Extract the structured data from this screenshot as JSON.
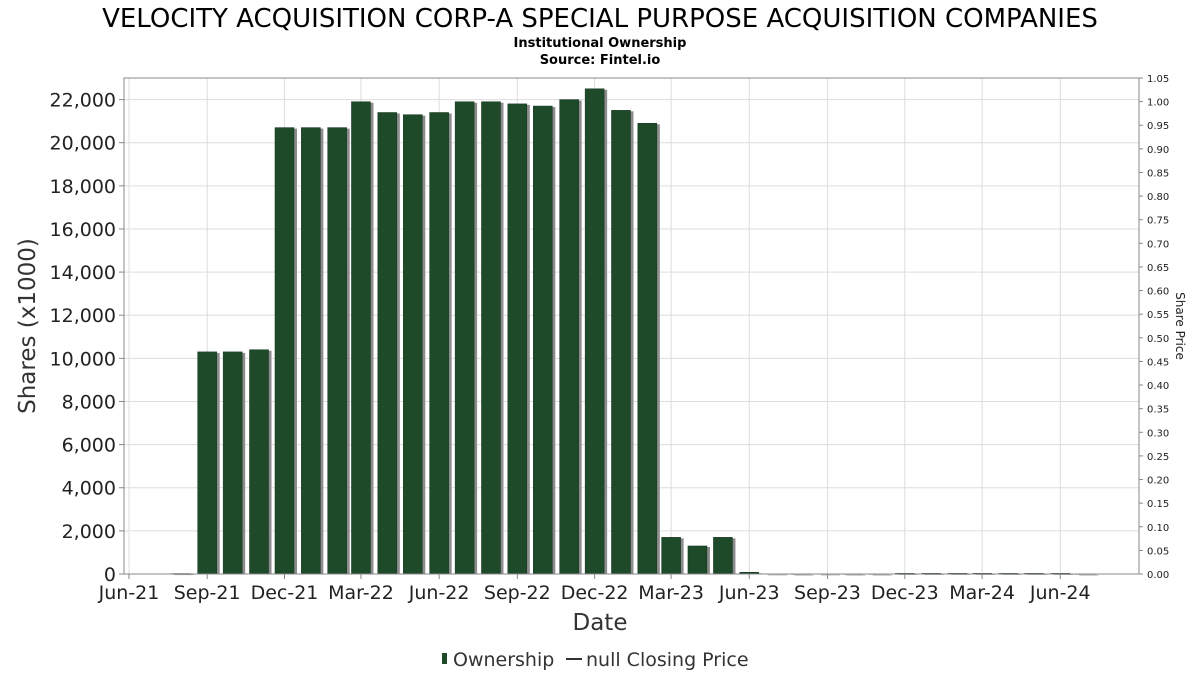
{
  "chart_data": {
    "type": "bar",
    "title": "VELOCITY ACQUISITION CORP-A SPECIAL PURPOSE ACQUISITION COMPANIES",
    "subtitle_lines": [
      "Institutional Ownership",
      "Source: Fintel.io"
    ],
    "xlabel": "Date",
    "ylabel": "Shares (x1000)",
    "y2label": "Share Price",
    "ylim": [
      0,
      23000
    ],
    "y2lim": [
      0,
      1.05
    ],
    "yticks": [
      0,
      2000,
      4000,
      6000,
      8000,
      10000,
      12000,
      14000,
      16000,
      18000,
      20000,
      22000
    ],
    "ytick_labels": [
      "0",
      "2,000",
      "4,000",
      "6,000",
      "8,000",
      "10,000",
      "12,000",
      "14,000",
      "16,000",
      "18,000",
      "20,000",
      "22,000"
    ],
    "y2tick_labels": [
      "0.00",
      "0.05",
      "0.10",
      "0.15",
      "0.20",
      "0.25",
      "0.30",
      "0.35",
      "0.40",
      "0.45",
      "0.50",
      "0.55",
      "0.60",
      "0.65",
      "0.70",
      "0.75",
      "0.80",
      "0.85",
      "0.90",
      "0.95",
      "1.00",
      "1.05"
    ],
    "x_range": [
      "2021-06-01",
      "2024-08-15"
    ],
    "xticks": [
      {
        "date": "2021-06-01",
        "label": "Jun-21"
      },
      {
        "date": "2021-09-01",
        "label": "Sep-21"
      },
      {
        "date": "2021-12-01",
        "label": "Dec-21"
      },
      {
        "date": "2022-03-01",
        "label": "Mar-22"
      },
      {
        "date": "2022-06-01",
        "label": "Jun-22"
      },
      {
        "date": "2022-09-01",
        "label": "Sep-22"
      },
      {
        "date": "2022-12-01",
        "label": "Dec-22"
      },
      {
        "date": "2023-03-01",
        "label": "Mar-23"
      },
      {
        "date": "2023-06-01",
        "label": "Jun-23"
      },
      {
        "date": "2023-09-01",
        "label": "Sep-23"
      },
      {
        "date": "2023-12-01",
        "label": "Dec-23"
      },
      {
        "date": "2024-03-01",
        "label": "Mar-24"
      },
      {
        "date": "2024-06-01",
        "label": "Jun-24"
      }
    ],
    "grid": true,
    "legend_position": "bottom-center",
    "colors": {
      "bar": "#1f4a2a",
      "bar_shadow": "#8c8c8c",
      "grid": "#dddddd"
    },
    "series": [
      {
        "name": "Ownership",
        "x": [
          "2021-08-01",
          "2021-09-01",
          "2021-10-01",
          "2021-11-01",
          "2021-12-01",
          "2022-01-01",
          "2022-02-01",
          "2022-03-01",
          "2022-04-01",
          "2022-05-01",
          "2022-06-01",
          "2022-07-01",
          "2022-08-01",
          "2022-09-01",
          "2022-10-01",
          "2022-11-01",
          "2022-12-01",
          "2023-01-01",
          "2023-02-01",
          "2023-03-01",
          "2023-04-01",
          "2023-05-01",
          "2023-06-01",
          "2023-07-01",
          "2023-08-01",
          "2023-09-01",
          "2023-10-01",
          "2023-11-01",
          "2023-12-01",
          "2024-01-01",
          "2024-02-01",
          "2024-03-01",
          "2024-04-01",
          "2024-05-01",
          "2024-06-01",
          "2024-07-01"
        ],
        "values": [
          20,
          10300,
          10300,
          10400,
          20700,
          20700,
          20700,
          21900,
          21400,
          21300,
          21400,
          21900,
          21900,
          21800,
          21700,
          22000,
          22500,
          21500,
          20900,
          1700,
          1300,
          1700,
          80,
          10,
          5,
          10,
          5,
          5,
          30,
          30,
          30,
          30,
          30,
          30,
          30,
          5
        ]
      },
      {
        "name": "null Closing Price",
        "x": [],
        "values": []
      }
    ]
  }
}
